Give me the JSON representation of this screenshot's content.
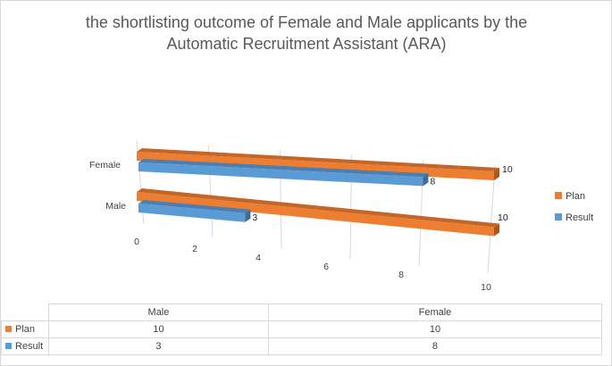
{
  "chart_data": {
    "type": "bar",
    "orientation": "horizontal",
    "style": "3d",
    "title_lines": [
      "the shortlisting outcome of Female and Male applicants by the",
      "Automatic Recruitment Assistant (ARA)"
    ],
    "categories": [
      "Male",
      "Female"
    ],
    "series": [
      {
        "name": "Plan",
        "values": [
          10,
          10
        ],
        "color": "#ed7d31"
      },
      {
        "name": "Result",
        "values": [
          3,
          8
        ],
        "color": "#5b9bd5"
      }
    ],
    "xlim": [
      0,
      10
    ],
    "x_ticks": [
      "0",
      "2",
      "4",
      "6",
      "8",
      "10"
    ],
    "gridlines": true,
    "legend_position": "right",
    "data_table": true
  }
}
